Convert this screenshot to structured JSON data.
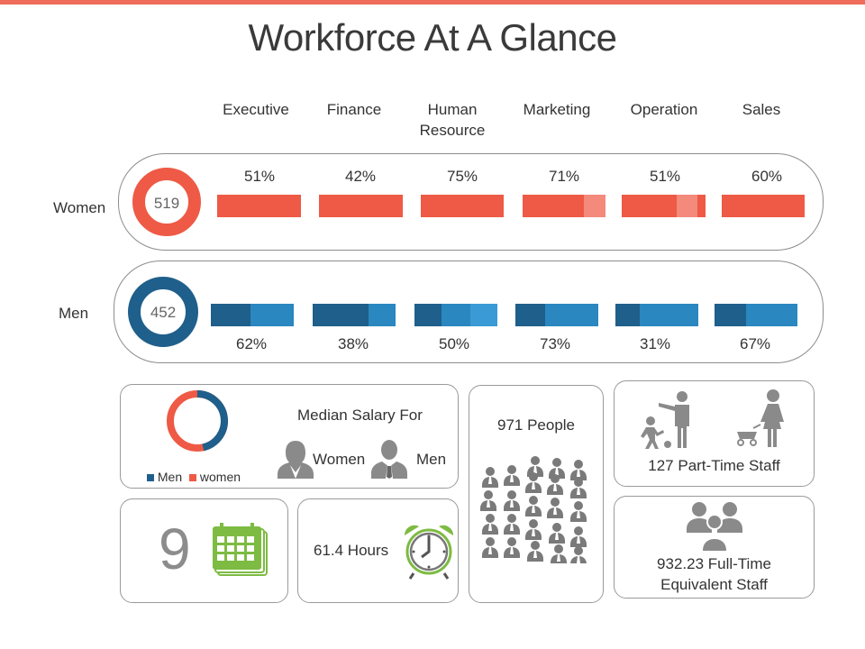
{
  "title": "Workforce At A Glance",
  "departments": [
    {
      "name": "Executive",
      "women_pct": "51%",
      "men_pct": "62%"
    },
    {
      "name": "Finance",
      "women_pct": "42%",
      "men_pct": "38%"
    },
    {
      "name": "Human\nResource",
      "women_pct": "75%",
      "men_pct": "50%"
    },
    {
      "name": "Marketing",
      "women_pct": "71%",
      "men_pct": "73%"
    },
    {
      "name": "Operation",
      "women_pct": "51%",
      "men_pct": "31%"
    },
    {
      "name": "Sales",
      "women_pct": "60%",
      "men_pct": "67%"
    }
  ],
  "women": {
    "label": "Women",
    "count": "519",
    "color": "#ee5a45",
    "light_color": "#f38a7c"
  },
  "men": {
    "label": "Men",
    "count": "452",
    "color": "#1f5f8b",
    "mid_color": "#2a87c0",
    "light_color": "#3a9ad6"
  },
  "salary": {
    "title": "Median Salary For",
    "women_label": "Women",
    "men_label": "Men",
    "legend_men": "Men",
    "legend_women": "women",
    "men_share": 0.466
  },
  "people": {
    "label": "971 People"
  },
  "part_time": {
    "label": "127 Part-Time Staff"
  },
  "calendar": {
    "value": "9",
    "color": "#7dbb42"
  },
  "hours": {
    "label": "61.4 Hours"
  },
  "full_time": {
    "label": "932.23 Full-Time\nEquivalent Staff"
  },
  "icons": {
    "calendar": "calendar-icon",
    "clock": "alarm-clock-icon",
    "people": "crowd-icon",
    "part_time": "parent-child-icon",
    "full_time": "team-icon"
  }
}
